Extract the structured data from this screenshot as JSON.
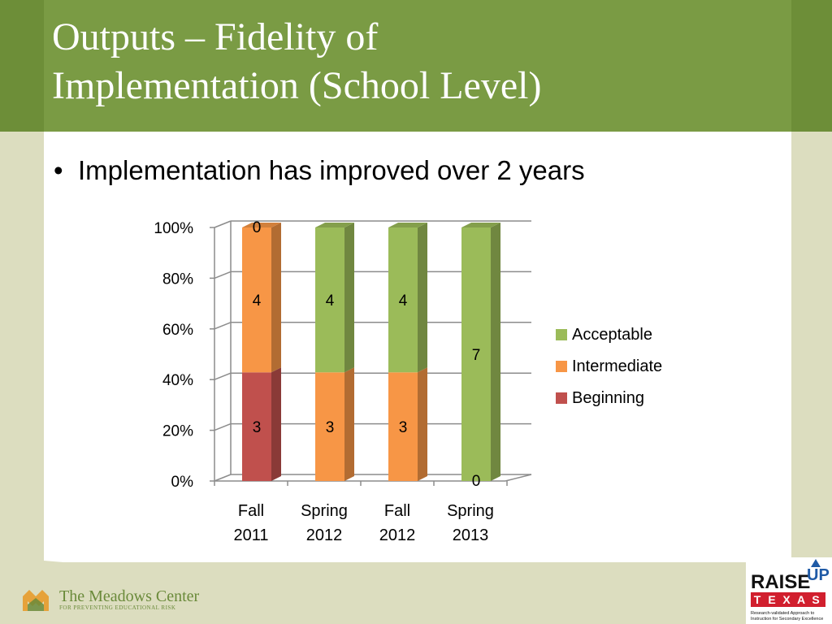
{
  "slide": {
    "title_line1": "Outputs – Fidelity of",
    "title_line2": "Implementation (School Level)",
    "bullet": "Implementation has improved over 2 years"
  },
  "chart_data": {
    "type": "bar",
    "stacked": true,
    "percent_stacked": true,
    "categories": [
      "Fall 2011",
      "Spring 2012",
      "Fall 2012",
      "Spring 2013"
    ],
    "category_lines": [
      [
        "Fall",
        "2011"
      ],
      [
        "Spring",
        "2012"
      ],
      [
        "Fall",
        "2012"
      ],
      [
        "Spring",
        "2013"
      ]
    ],
    "series": [
      {
        "name": "Beginning",
        "values": [
          3,
          0,
          0,
          0
        ],
        "color": "#c0504d",
        "labels": [
          "3",
          "",
          "",
          ""
        ]
      },
      {
        "name": "Intermediate",
        "values": [
          4,
          3,
          3,
          0
        ],
        "color": "#f79646",
        "labels": [
          "4",
          "3",
          "3",
          "0"
        ]
      },
      {
        "name": "Acceptable",
        "values": [
          0,
          4,
          4,
          7
        ],
        "color": "#9bbb59",
        "labels": [
          "0",
          "4",
          "4",
          "7"
        ]
      }
    ],
    "legend_order": [
      "Acceptable",
      "Intermediate",
      "Beginning"
    ],
    "y_ticks": [
      "0%",
      "20%",
      "40%",
      "60%",
      "80%",
      "100%"
    ],
    "ylim": [
      0,
      100
    ],
    "grid": true,
    "legend_position": "right",
    "style": "3d-column"
  },
  "footer": {
    "meadows_line1": "The Meadows Center",
    "meadows_line2": "FOR PREVENTING EDUCATIONAL RISK",
    "raise_word": "RAISE",
    "up_word": "UP",
    "texas_letters": [
      "T",
      "E",
      "X",
      "A",
      "S"
    ],
    "raise_tagline1": "Research-validated Approach to",
    "raise_tagline2": "Instruction for Secondary Excellence"
  },
  "colors": {
    "header_green": "#7a9b44",
    "side_beige": "#dcddbf",
    "meadows_green": "#6a8a3a",
    "raise_red": "#d11f2e",
    "raise_blue": "#1f5aa6"
  }
}
